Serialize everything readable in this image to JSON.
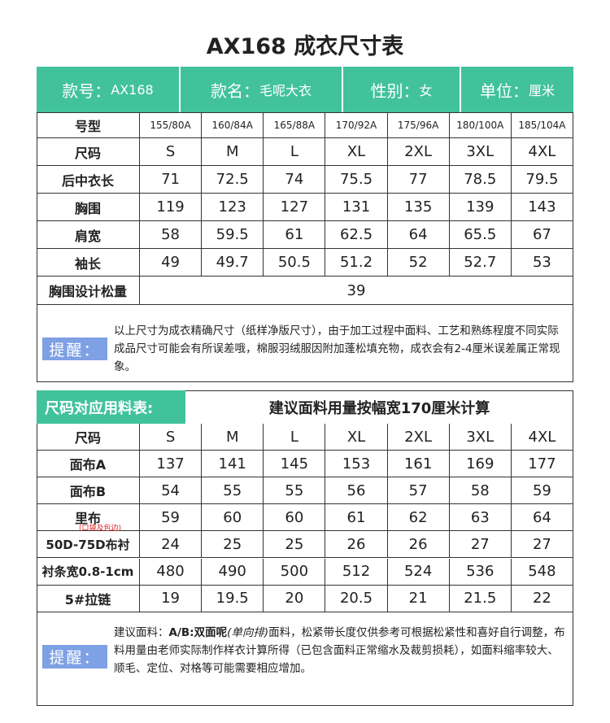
{
  "title": "AX168 成衣尺寸表",
  "info": [
    {
      "label": "款号：",
      "value": "AX168"
    },
    {
      "label": "款名：",
      "value": "毛呢大衣"
    },
    {
      "label": "性别：",
      "value": "女"
    },
    {
      "label": "单位：",
      "value": "厘米"
    }
  ],
  "size_table": {
    "header": [
      "号型",
      "155/80A",
      "160/84A",
      "165/88A",
      "170/92A",
      "175/96A",
      "180/100A",
      "185/104A"
    ],
    "rows": [
      [
        "尺码",
        "S",
        "M",
        "L",
        "XL",
        "2XL",
        "3XL",
        "4XL"
      ],
      [
        "后中衣长",
        71,
        72.5,
        74,
        75.5,
        77,
        78.5,
        79.5
      ],
      [
        "胸围",
        119,
        123,
        127,
        131,
        135,
        139,
        143
      ],
      [
        "肩宽",
        58,
        59.5,
        61,
        62.5,
        64,
        65.5,
        67
      ],
      [
        "袖长",
        49,
        49.7,
        50.5,
        51.2,
        52,
        52.7,
        53
      ]
    ],
    "ease": {
      "label": "胸围设计松量",
      "value": 39
    }
  },
  "note1": {
    "label": "提醒：",
    "text": "以上尺寸为成衣精确尺寸（纸样净版尺寸），由于加工过程中面料、工艺和熟练程度不同实际成品尺寸可能会有所误差哦，棉服羽绒服因附加蓬松填充物，成衣会有2-4厘米误差属正常现象。"
  },
  "material": {
    "title": "尺码对应用料表:",
    "subtitle": "建议面料用量按幅宽170厘米计算",
    "header": [
      "尺码",
      "S",
      "M",
      "L",
      "XL",
      "2XL",
      "3XL",
      "4XL"
    ],
    "rows": [
      [
        "面布A",
        137,
        141,
        145,
        153,
        161,
        169,
        177
      ],
      [
        "面布B",
        54,
        55,
        55,
        56,
        57,
        58,
        59
      ],
      [
        "里布",
        59,
        60,
        60,
        61,
        62,
        63,
        64
      ],
      [
        "50D-75D布衬",
        24,
        25,
        25,
        26,
        26,
        27,
        27
      ],
      [
        "衬条宽0.8-1cm",
        480,
        490,
        500,
        512,
        524,
        536,
        548
      ],
      [
        "5#拉链",
        19,
        19.5,
        20,
        20.5,
        21,
        21.5,
        22
      ]
    ],
    "lining_note": "(口袋及包边)"
  },
  "note2": {
    "label": "提醒：",
    "text_before": "建议面料：",
    "bold": "A/B:双面呢",
    "italic": "(单向排)",
    "text_after": "面料，松紧带长度仅供参考可根据松紧性和喜好自行调整，布料用量由老师实际制作样衣计算所得（已包含面料正常缩水及裁剪损耗），如面料缩率较大、顺毛、定位、对格等可能需要相应增加。"
  }
}
